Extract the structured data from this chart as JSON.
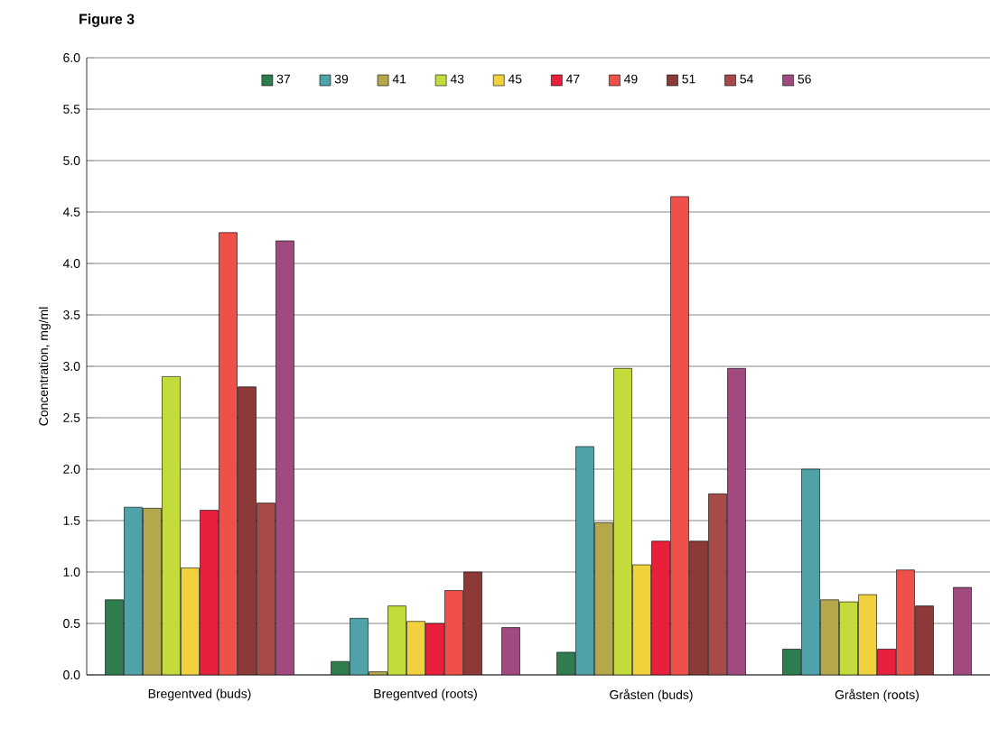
{
  "chart_data": {
    "type": "bar",
    "title": "Figure 3",
    "ylabel": "Concentration, mg/ml",
    "categories": [
      "Bregentved (buds)",
      "Bregentved (roots)",
      "Gråsten (buds)",
      "Gråsten (roots)"
    ],
    "series": [
      {
        "name": "37",
        "color": "#2e7d4f",
        "values": [
          0.73,
          0.13,
          0.22,
          0.25
        ]
      },
      {
        "name": "39",
        "color": "#4fa3a8",
        "values": [
          1.63,
          0.55,
          2.22,
          2.0
        ]
      },
      {
        "name": "41",
        "color": "#b5a84a",
        "values": [
          1.62,
          0.03,
          1.48,
          0.73
        ]
      },
      {
        "name": "43",
        "color": "#c3dc3c",
        "values": [
          2.9,
          0.67,
          2.98,
          0.71
        ]
      },
      {
        "name": "45",
        "color": "#f2d23c",
        "values": [
          1.04,
          0.52,
          1.07,
          0.78
        ]
      },
      {
        "name": "47",
        "color": "#e8203c",
        "values": [
          1.6,
          0.5,
          1.3,
          0.25
        ]
      },
      {
        "name": "49",
        "color": "#f0504a",
        "values": [
          4.3,
          0.82,
          4.65,
          1.02
        ]
      },
      {
        "name": "51",
        "color": "#8c3a38",
        "values": [
          2.8,
          1.0,
          1.3,
          0.67
        ]
      },
      {
        "name": "54",
        "color": "#a84a48",
        "values": [
          1.67,
          null,
          1.76,
          null
        ]
      },
      {
        "name": "56",
        "color": "#a04a80",
        "values": [
          4.22,
          0.46,
          2.98,
          0.85
        ]
      }
    ],
    "ylim": [
      0,
      6
    ],
    "yticks": [
      {
        "value": 0,
        "label": "0.0"
      },
      {
        "value": 0.5,
        "label": "0.5"
      },
      {
        "value": 1,
        "label": "1.0"
      },
      {
        "value": 1.5,
        "label": "1.5"
      },
      {
        "value": 2,
        "label": "2.0"
      },
      {
        "value": 2.5,
        "label": "2.5"
      },
      {
        "value": 3,
        "label": "3.0"
      },
      {
        "value": 3.5,
        "label": "3.5"
      },
      {
        "value": 4,
        "label": "4.0"
      },
      {
        "value": 4.5,
        "label": "4.5"
      },
      {
        "value": 5,
        "label": "5.0"
      },
      {
        "value": 5.5,
        "label": "5.5"
      },
      {
        "value": 6,
        "label": "6.0"
      }
    ],
    "grid": "y",
    "legend": "top"
  }
}
